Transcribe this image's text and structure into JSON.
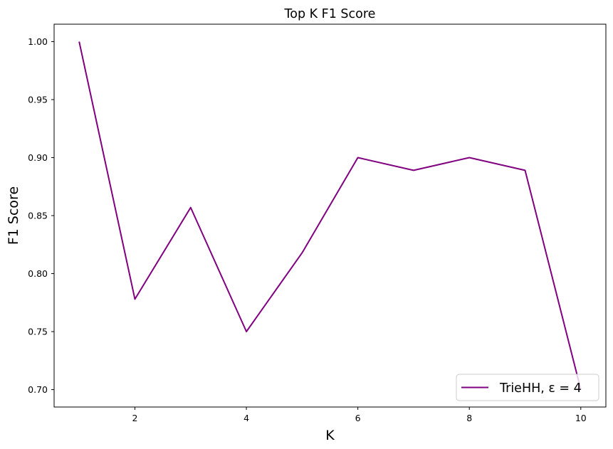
{
  "chart_data": {
    "type": "line",
    "title": "Top K F1 Score",
    "xlabel": "K",
    "ylabel": "F1 Score",
    "xlim": [
      0.55,
      10.45
    ],
    "ylim": [
      0.685,
      1.015
    ],
    "x_ticks": [
      2,
      4,
      6,
      8,
      10
    ],
    "y_ticks": [
      0.7,
      0.75,
      0.8,
      0.85,
      0.9,
      0.95,
      1.0
    ],
    "y_tick_labels": [
      "0.70",
      "0.75",
      "0.80",
      "0.85",
      "0.90",
      "0.95",
      "1.00"
    ],
    "grid": false,
    "legend_position": "lower-right",
    "series": [
      {
        "name": "TrieHH, ε = 4",
        "color": "#800080",
        "x": [
          1,
          2,
          3,
          4,
          5,
          6,
          7,
          8,
          9,
          10
        ],
        "values": [
          1.0,
          0.778,
          0.857,
          0.75,
          0.818,
          0.9,
          0.889,
          0.9,
          0.889,
          0.7
        ]
      }
    ]
  }
}
